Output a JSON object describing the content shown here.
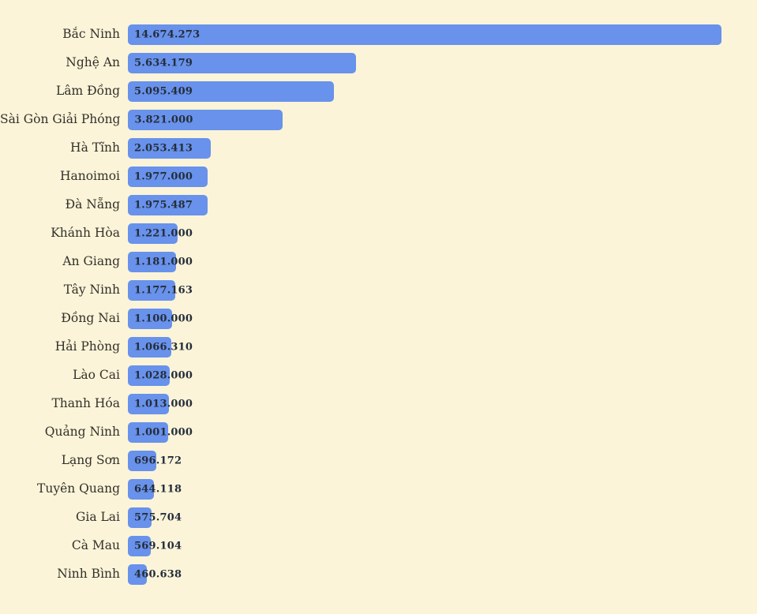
{
  "page": {
    "background_color": "#FBF4D8"
  },
  "chart_data": {
    "type": "bar",
    "orientation": "horizontal",
    "title": "",
    "xlabel": "",
    "ylabel": "",
    "grid": false,
    "legend": null,
    "xlim": [
      0,
      14674273
    ],
    "bar_color": "#6892EB",
    "category_label_color": "#33302A",
    "value_label_color": "#252D3A",
    "categories": [
      "Bắc Ninh",
      "Nghệ An",
      "Lâm Đồng",
      "Sài Gòn Giải Phóng",
      "Hà Tĩnh",
      "Hanoimoi",
      "Đà Nẵng",
      "Khánh Hòa",
      "An Giang",
      "Tây Ninh",
      "Đồng Nai",
      "Hải Phòng",
      "Lào Cai",
      "Thanh Hóa",
      "Quảng Ninh",
      "Lạng Sơn",
      "Tuyên Quang",
      "Gia Lai",
      "Cà Mau",
      "Ninh Bình"
    ],
    "values": [
      14674273,
      5634179,
      5095409,
      3821000,
      2053413,
      1977000,
      1975487,
      1221000,
      1181000,
      1177163,
      1100000,
      1066310,
      1028000,
      1013000,
      1001000,
      696172,
      644118,
      575704,
      569104,
      460638
    ],
    "value_labels": [
      "14.674.273",
      "5.634.179",
      "5.095.409",
      "3.821.000",
      "2.053.413",
      "1.977.000",
      "1.975.487",
      "1.221.000",
      "1.181.000",
      "1.177.163",
      "1.100.000",
      "1.066.310",
      "1.028.000",
      "1.013.000",
      "1.001.000",
      "696.172",
      "644.118",
      "575.704",
      "569.104",
      "460.638"
    ]
  }
}
